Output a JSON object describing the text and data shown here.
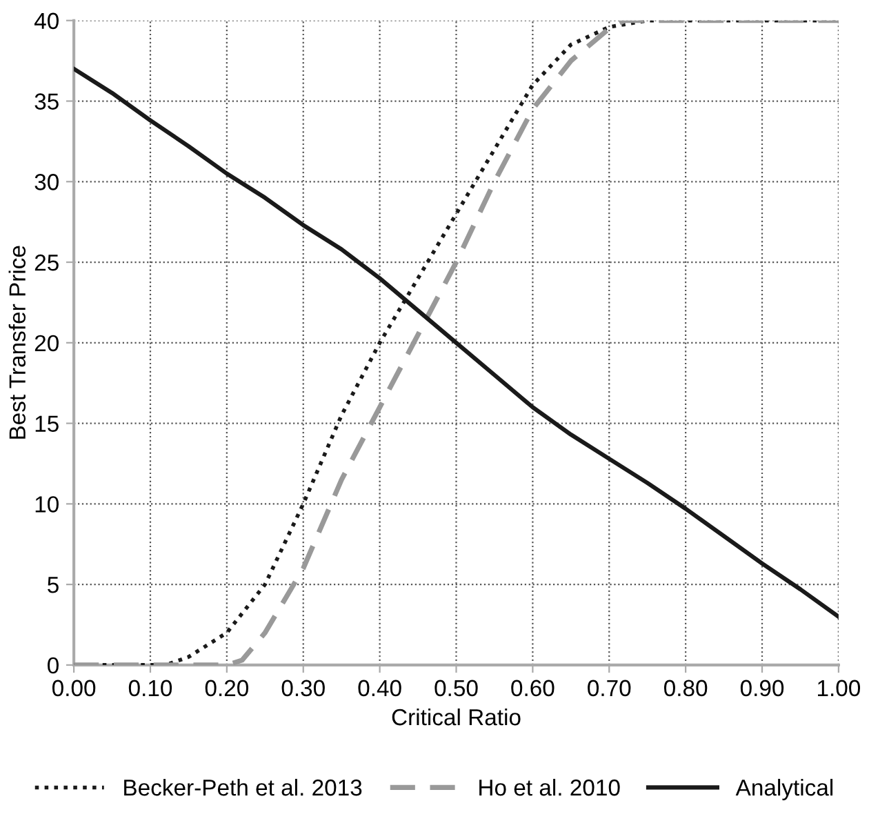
{
  "chart_data": {
    "type": "line",
    "xlabel": "Critical Ratio",
    "ylabel": "Best Transfer Price",
    "xlim": [
      0,
      1
    ],
    "xticks": [
      {
        "value": 0,
        "label": "0.00"
      },
      {
        "value": 0.1,
        "label": "0.10"
      },
      {
        "value": 0.2,
        "label": "0.20"
      },
      {
        "value": 0.3,
        "label": "0.30"
      },
      {
        "value": 0.4,
        "label": "0.40"
      },
      {
        "value": 0.5,
        "label": "0.50"
      },
      {
        "value": 0.6,
        "label": "0.60"
      },
      {
        "value": 0.7,
        "label": "0.70"
      },
      {
        "value": 0.8,
        "label": "0.80"
      },
      {
        "value": 0.9,
        "label": "0.90"
      },
      {
        "value": 1,
        "label": "1.00"
      }
    ],
    "ylim": [
      0,
      40
    ],
    "yticks": [
      0,
      5,
      10,
      15,
      20,
      25,
      30,
      35,
      40
    ],
    "grid": true,
    "legend": "bottom",
    "series": [
      {
        "name": "Becker-Peth et al. 2013",
        "color": "#1a1a1a",
        "line_style": "dotted",
        "x": [
          0,
          0.05,
          0.1,
          0.12,
          0.15,
          0.2,
          0.25,
          0.3,
          0.35,
          0.4,
          0.45,
          0.5,
          0.55,
          0.6,
          0.65,
          0.7,
          0.75,
          0.8,
          0.9,
          1.0
        ],
        "values": [
          0,
          0,
          0,
          0,
          0.5,
          2,
          5,
          10,
          15.5,
          20,
          24,
          28,
          32,
          36,
          38.5,
          39.6,
          40,
          40,
          40,
          40
        ]
      },
      {
        "name": "Ho et al. 2010",
        "color": "#999999",
        "line_style": "dashed",
        "x": [
          0,
          0.1,
          0.2,
          0.22,
          0.25,
          0.3,
          0.35,
          0.4,
          0.45,
          0.5,
          0.55,
          0.6,
          0.65,
          0.7,
          0.72,
          0.8,
          0.9,
          1.0
        ],
        "values": [
          0,
          0,
          0,
          0.3,
          2,
          6,
          11.5,
          16,
          20.5,
          25,
          30,
          34.5,
          37.5,
          39.5,
          40,
          40,
          40,
          40
        ]
      },
      {
        "name": "Analytical",
        "color": "#1a1a1a",
        "line_style": "solid",
        "x": [
          0,
          0.05,
          0.1,
          0.15,
          0.2,
          0.25,
          0.3,
          0.35,
          0.4,
          0.45,
          0.5,
          0.55,
          0.6,
          0.65,
          0.7,
          0.75,
          0.8,
          0.85,
          0.9,
          0.95,
          1.0
        ],
        "values": [
          37,
          35.5,
          33.8,
          32.2,
          30.5,
          29,
          27.3,
          25.8,
          24,
          22,
          20,
          18,
          16,
          14.3,
          12.8,
          11.3,
          9.7,
          8,
          6.3,
          4.7,
          3
        ]
      }
    ]
  }
}
